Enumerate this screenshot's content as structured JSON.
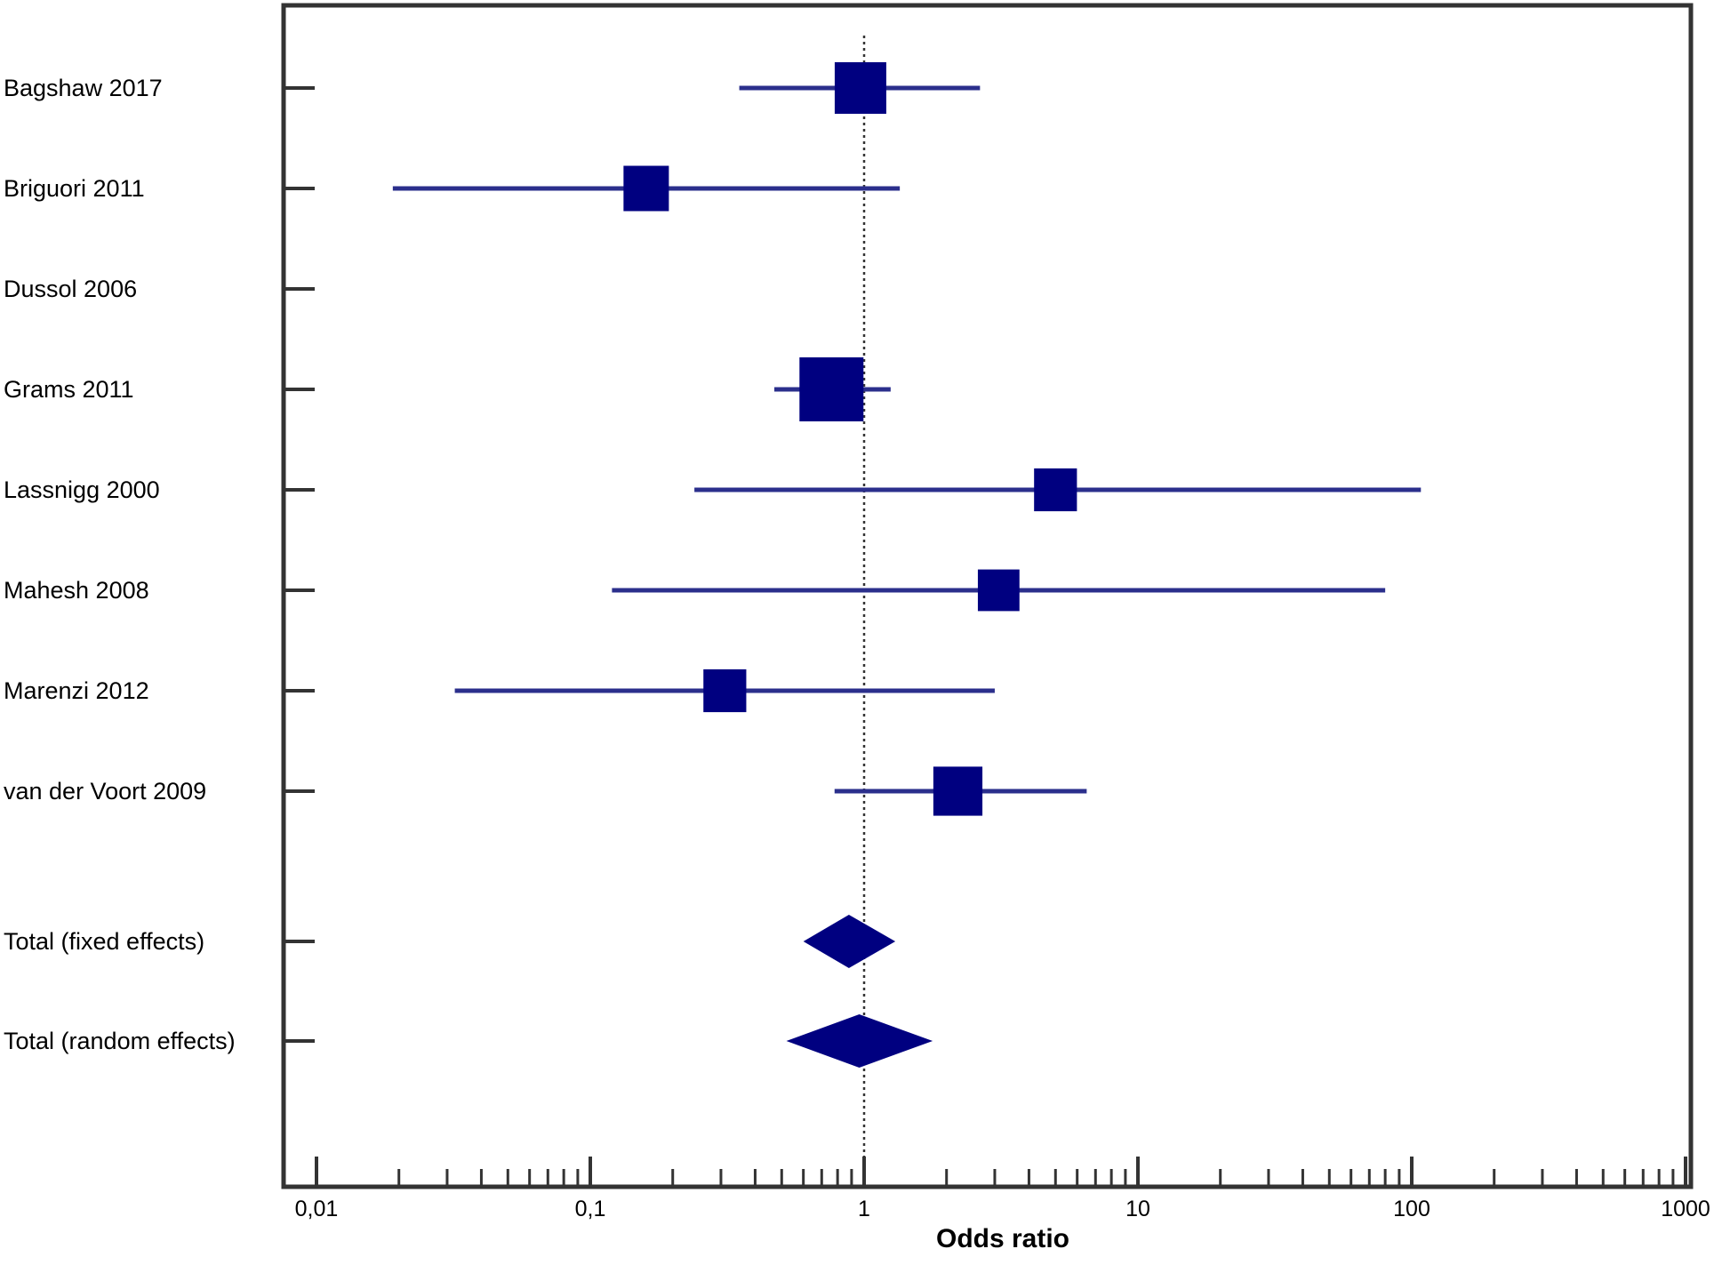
{
  "chart_data": {
    "type": "forest",
    "xlabel": "Odds ratio",
    "x_scale": "log",
    "xlim": [
      0.01,
      1000
    ],
    "x_ticks": [
      {
        "value": 0.01,
        "label": "0,01"
      },
      {
        "value": 0.1,
        "label": "0,1"
      },
      {
        "value": 1,
        "label": "1"
      },
      {
        "value": 10,
        "label": "10"
      },
      {
        "value": 100,
        "label": "100"
      },
      {
        "value": 1000,
        "label": "1000"
      }
    ],
    "reference_line": 1,
    "colors": {
      "marker": "#000080",
      "ci_line": "#2b2f8c",
      "frame": "#333333"
    },
    "studies": [
      {
        "name": "Bagshaw 2017",
        "or": 0.97,
        "ci": [
          0.35,
          2.65
        ],
        "weight": 1.0
      },
      {
        "name": "Briguori 2011",
        "or": 0.16,
        "ci": [
          0.019,
          1.35
        ],
        "weight": 0.75
      },
      {
        "name": "Dussol 2006",
        "or": null,
        "ci": null,
        "weight": 0
      },
      {
        "name": "Grams 2011",
        "or": 0.76,
        "ci": [
          0.47,
          1.25
        ],
        "weight": 1.5
      },
      {
        "name": "Lassnigg 2000",
        "or": 5.0,
        "ci": [
          0.24,
          108
        ],
        "weight": 0.65
      },
      {
        "name": "Mahesh 2008",
        "or": 3.1,
        "ci": [
          0.12,
          80
        ],
        "weight": 0.6
      },
      {
        "name": "Marenzi 2012",
        "or": 0.31,
        "ci": [
          0.032,
          3.0
        ],
        "weight": 0.65
      },
      {
        "name": "van der Voort 2009",
        "or": 2.2,
        "ci": [
          0.78,
          6.5
        ],
        "weight": 0.9
      }
    ],
    "totals": [
      {
        "name": "Total (fixed effects)",
        "or": 0.88,
        "ci": [
          0.6,
          1.3
        ]
      },
      {
        "name": "Total (random effects)",
        "or": 0.96,
        "ci": [
          0.52,
          1.78
        ]
      }
    ]
  }
}
